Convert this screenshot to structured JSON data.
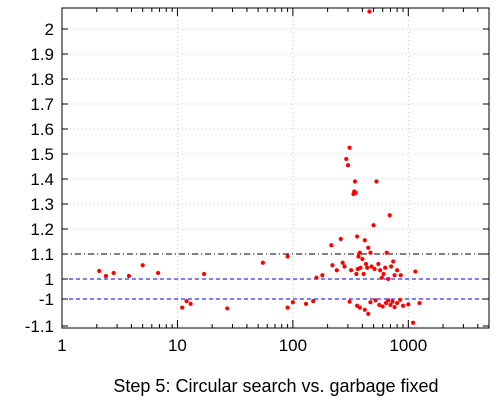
{
  "chart_data": {
    "type": "scatter",
    "title": "",
    "xlabel": "Step 5: Circular search vs. garbage fixed",
    "ylabel": "",
    "x_scale": "log",
    "xlim": [
      1,
      5000
    ],
    "x_ticks": [
      1,
      10,
      100,
      1000
    ],
    "x_tick_labels": [
      "1",
      "10",
      "100",
      "1000"
    ],
    "y_ticks": [
      {
        "value": 2.0,
        "label": "2"
      },
      {
        "value": 1.9,
        "label": "1.9"
      },
      {
        "value": 1.8,
        "label": "1.8"
      },
      {
        "value": 1.7,
        "label": "1.7"
      },
      {
        "value": 1.6,
        "label": "1.6"
      },
      {
        "value": 1.5,
        "label": "1.5"
      },
      {
        "value": 1.4,
        "label": "1.4"
      },
      {
        "value": 1.3,
        "label": "1.3"
      },
      {
        "value": 1.2,
        "label": "1.2"
      },
      {
        "value": 1.1,
        "label": "1.1"
      },
      {
        "value": 1.0,
        "label": "1"
      },
      {
        "value": -1.0,
        "label": "-1"
      },
      {
        "value": -1.1,
        "label": "-1.1"
      }
    ],
    "grid": true,
    "reference_lines": [
      {
        "y": 1.1,
        "style": "dash-dot",
        "color": "#000000"
      },
      {
        "y": 1.0,
        "style": "dashed",
        "color": "#0000cc"
      },
      {
        "y": -1.0,
        "style": "dashed",
        "color": "#0000cc"
      }
    ],
    "point_color": "#ff0000",
    "points": [
      [
        2.1,
        1.032
      ],
      [
        2.4,
        1.012
      ],
      [
        2.8,
        1.024
      ],
      [
        3.8,
        1.012
      ],
      [
        5,
        1.055
      ],
      [
        6.8,
        1.024
      ],
      [
        17,
        1.02
      ],
      [
        55,
        1.065
      ],
      [
        90,
        1.09
      ],
      [
        160,
        1.005
      ],
      [
        180,
        1.015
      ],
      [
        215,
        1.135
      ],
      [
        220,
        1.055
      ],
      [
        240,
        1.035
      ],
      [
        260,
        1.16
      ],
      [
        270,
        1.065
      ],
      [
        280,
        1.05
      ],
      [
        290,
        1.48
      ],
      [
        300,
        1.455
      ],
      [
        310,
        1.525
      ],
      [
        320,
        1.035
      ],
      [
        335,
        1.34
      ],
      [
        340,
        1.35
      ],
      [
        345,
        1.39
      ],
      [
        350,
        1.345
      ],
      [
        355,
        1.02
      ],
      [
        360,
        1.17
      ],
      [
        365,
        1.04
      ],
      [
        370,
        1.09
      ],
      [
        380,
        1.105
      ],
      [
        385,
        1.045
      ],
      [
        400,
        1.08
      ],
      [
        410,
        1.02
      ],
      [
        420,
        1.155
      ],
      [
        430,
        1.06
      ],
      [
        440,
        1.045
      ],
      [
        450,
        1.125
      ],
      [
        460,
        2.07
      ],
      [
        470,
        1.105
      ],
      [
        480,
        1.05
      ],
      [
        500,
        1.215
      ],
      [
        510,
        1.04
      ],
      [
        530,
        1.39
      ],
      [
        550,
        1.06
      ],
      [
        570,
        1.035
      ],
      [
        590,
        1.005
      ],
      [
        610,
        1.02
      ],
      [
        630,
        1.045
      ],
      [
        650,
        1.105
      ],
      [
        670,
        1.0
      ],
      [
        690,
        1.255
      ],
      [
        710,
        1.05
      ],
      [
        740,
        1.07
      ],
      [
        760,
        1.015
      ],
      [
        800,
        1.035
      ],
      [
        860,
        1.015
      ],
      [
        1150,
        1.03
      ],
      [
        11,
        -1.032
      ],
      [
        12,
        -1.008
      ],
      [
        13,
        -1.018
      ],
      [
        27,
        -1.035
      ],
      [
        90,
        -1.032
      ],
      [
        100,
        -1.012
      ],
      [
        130,
        -1.018
      ],
      [
        150,
        -1.008
      ],
      [
        310,
        -1.01
      ],
      [
        360,
        -1.025
      ],
      [
        380,
        -1.032
      ],
      [
        420,
        -1.04
      ],
      [
        450,
        -1.055
      ],
      [
        470,
        -1.012
      ],
      [
        520,
        -1.005
      ],
      [
        560,
        -1.022
      ],
      [
        600,
        -1.028
      ],
      [
        640,
        -1.015
      ],
      [
        670,
        -1.005
      ],
      [
        700,
        -1.022
      ],
      [
        730,
        -1.01
      ],
      [
        760,
        -1.03
      ],
      [
        800,
        -1.015
      ],
      [
        850,
        -1.003
      ],
      [
        900,
        -1.025
      ],
      [
        1000,
        -1.02
      ],
      [
        1100,
        -1.088
      ],
      [
        1250,
        -1.015
      ]
    ]
  }
}
